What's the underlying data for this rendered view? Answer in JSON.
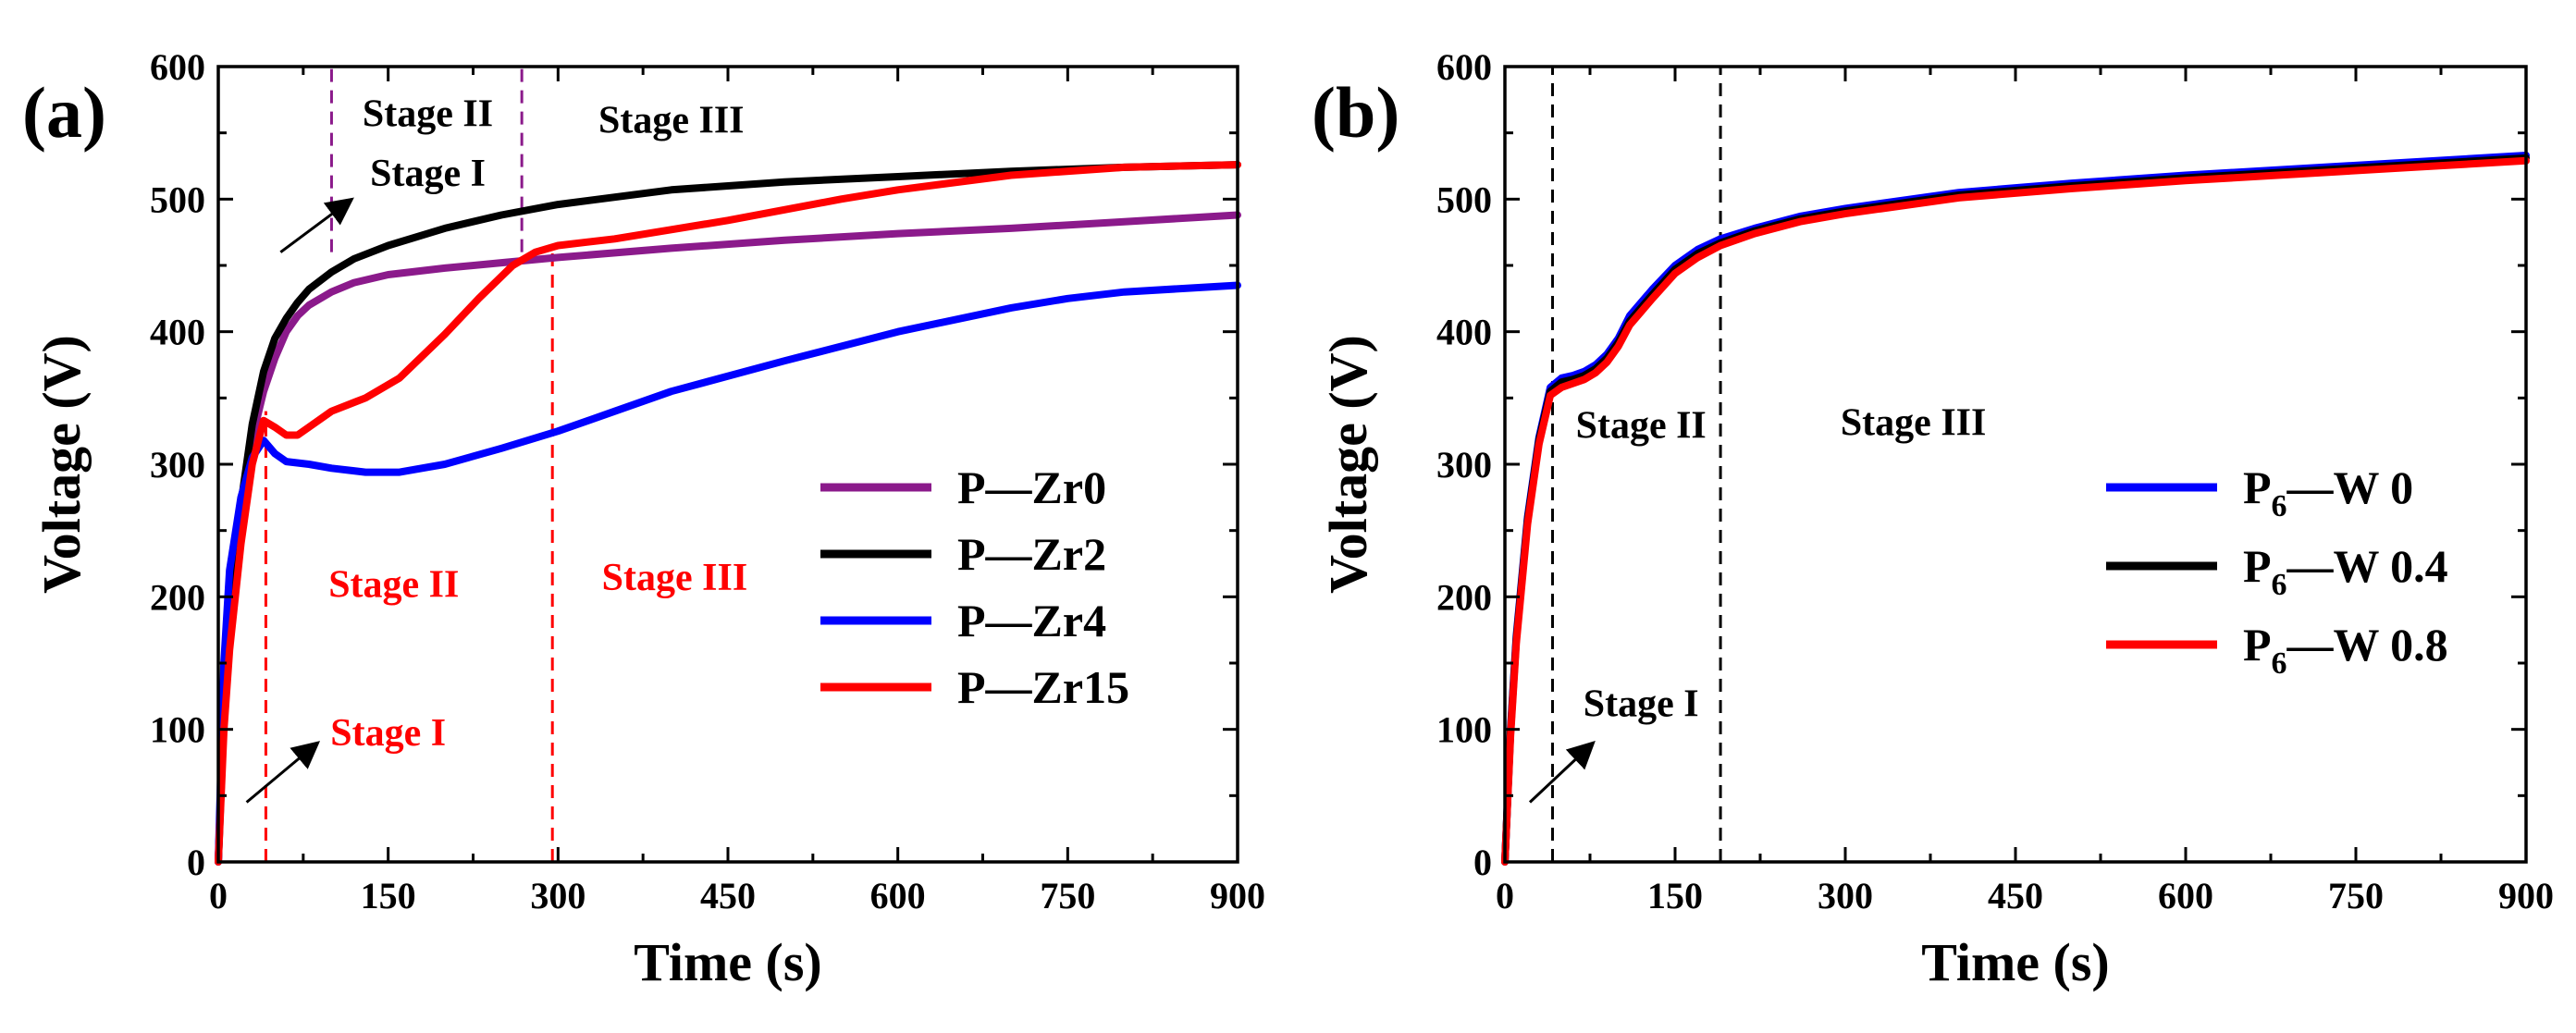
{
  "chart_data": [
    {
      "panel_label": "(a)",
      "type": "line",
      "xlabel": "Time (s)",
      "ylabel": "Voltage (V)",
      "xlim": [
        0,
        900
      ],
      "ylim": [
        0,
        600
      ],
      "xticks": [
        0,
        150,
        300,
        450,
        600,
        750,
        900
      ],
      "yticks": [
        0,
        100,
        200,
        300,
        400,
        500,
        600
      ],
      "vlines": [
        {
          "x": 42,
          "color": "#ff0000",
          "ymin": 0,
          "ymax": 340
        },
        {
          "x": 295,
          "color": "#ff0000",
          "ymin": 0,
          "ymax": 460
        },
        {
          "x": 100,
          "color": "#8b1a8b",
          "ymin": 460,
          "ymax": 600
        },
        {
          "x": 268,
          "color": "#8b1a8b",
          "ymin": 460,
          "ymax": 600
        }
      ],
      "annotations": [
        {
          "text": "Stage II",
          "x": 185,
          "y": 555,
          "color": "#000000"
        },
        {
          "text": "Stage III",
          "x": 400,
          "y": 550,
          "color": "#000000"
        },
        {
          "text": "Stage I",
          "x": 185,
          "y": 510,
          "color": "#000000"
        },
        {
          "text": "Stage II",
          "x": 155,
          "y": 200,
          "color": "#ff0000"
        },
        {
          "text": "Stage III",
          "x": 403,
          "y": 205,
          "color": "#ff0000"
        },
        {
          "text": "Stage I",
          "x": 150,
          "y": 88,
          "color": "#ff0000"
        }
      ],
      "arrows": [
        {
          "from": [
            55,
            460
          ],
          "to": [
            118,
            500
          ]
        },
        {
          "from": [
            25,
            45
          ],
          "to": [
            88,
            90
          ]
        }
      ],
      "legend": {
        "position": "center-right"
      },
      "series": [
        {
          "name": "P—Zr0",
          "color": "#8b1a8b",
          "x": [
            0,
            5,
            10,
            20,
            30,
            40,
            50,
            60,
            70,
            80,
            100,
            120,
            150,
            200,
            250,
            300,
            400,
            500,
            600,
            700,
            800,
            900
          ],
          "y": [
            0,
            120,
            190,
            270,
            320,
            355,
            380,
            400,
            412,
            420,
            430,
            437,
            443,
            448,
            452,
            456,
            463,
            469,
            474,
            478,
            483,
            488
          ]
        },
        {
          "name": "P—Zr2",
          "color": "#000000",
          "x": [
            0,
            5,
            10,
            20,
            30,
            40,
            50,
            60,
            70,
            80,
            100,
            120,
            150,
            200,
            250,
            300,
            400,
            500,
            600,
            700,
            800,
            900
          ],
          "y": [
            0,
            110,
            180,
            270,
            330,
            370,
            395,
            410,
            422,
            432,
            445,
            455,
            465,
            478,
            488,
            496,
            507,
            513,
            517,
            521,
            524,
            526
          ]
        },
        {
          "name": "P—Zr4",
          "color": "#0000ff",
          "x": [
            0,
            5,
            10,
            20,
            30,
            40,
            50,
            60,
            80,
            100,
            130,
            160,
            200,
            250,
            300,
            350,
            400,
            500,
            600,
            700,
            750,
            800,
            900
          ],
          "y": [
            0,
            150,
            220,
            275,
            305,
            318,
            308,
            302,
            300,
            297,
            294,
            294,
            300,
            312,
            325,
            340,
            355,
            378,
            400,
            418,
            425,
            430,
            435
          ]
        },
        {
          "name": "P—Zr15",
          "color": "#ff0000",
          "x": [
            0,
            5,
            10,
            20,
            30,
            40,
            50,
            60,
            70,
            80,
            100,
            130,
            160,
            200,
            230,
            260,
            280,
            300,
            350,
            400,
            450,
            500,
            550,
            600,
            700,
            800,
            900
          ],
          "y": [
            0,
            100,
            160,
            240,
            300,
            333,
            328,
            322,
            322,
            328,
            340,
            350,
            365,
            398,
            425,
            450,
            460,
            465,
            470,
            477,
            484,
            492,
            500,
            507,
            518,
            524,
            526
          ]
        }
      ]
    },
    {
      "panel_label": "(b)",
      "type": "line",
      "xlabel": "Time (s)",
      "ylabel": "Voltage (V)",
      "xlim": [
        0,
        900
      ],
      "ylim": [
        0,
        600
      ],
      "xticks": [
        0,
        150,
        300,
        450,
        600,
        750,
        900
      ],
      "yticks": [
        0,
        100,
        200,
        300,
        400,
        500,
        600
      ],
      "vlines": [
        {
          "x": 42,
          "color": "#000000",
          "ymin": 0,
          "ymax": 600
        },
        {
          "x": 190,
          "color": "#000000",
          "ymin": 0,
          "ymax": 600
        }
      ],
      "annotations": [
        {
          "text": "Stage II",
          "x": 120,
          "y": 320,
          "color": "#000000"
        },
        {
          "text": "Stage III",
          "x": 360,
          "y": 322,
          "color": "#000000"
        },
        {
          "text": "Stage I",
          "x": 120,
          "y": 110,
          "color": "#000000"
        }
      ],
      "arrows": [
        {
          "from": [
            22,
            45
          ],
          "to": [
            78,
            90
          ]
        }
      ],
      "legend": {
        "position": "center-right"
      },
      "series": [
        {
          "name": "P",
          "name_sub": "6",
          "name_rest": "—W 0",
          "color": "#0000ff",
          "x": [
            0,
            5,
            10,
            20,
            30,
            40,
            50,
            60,
            70,
            80,
            90,
            100,
            110,
            130,
            150,
            170,
            190,
            220,
            260,
            300,
            400,
            500,
            600,
            700,
            800,
            900
          ],
          "y": [
            0,
            100,
            170,
            260,
            320,
            358,
            365,
            367,
            370,
            375,
            383,
            395,
            412,
            432,
            450,
            462,
            470,
            478,
            487,
            493,
            505,
            512,
            518,
            523,
            528,
            533
          ]
        },
        {
          "name": "P",
          "name_sub": "6",
          "name_rest": "—W 0.4",
          "color": "#000000",
          "x": [
            0,
            5,
            10,
            20,
            30,
            40,
            50,
            60,
            70,
            80,
            90,
            100,
            110,
            130,
            150,
            170,
            190,
            220,
            260,
            300,
            400,
            500,
            600,
            700,
            800,
            900
          ],
          "y": [
            0,
            98,
            168,
            258,
            318,
            355,
            362,
            364,
            367,
            372,
            380,
            392,
            408,
            428,
            447,
            459,
            467,
            476,
            485,
            491,
            503,
            510,
            516,
            521,
            526,
            531
          ]
        },
        {
          "name": "P",
          "name_sub": "6",
          "name_rest": "—W 0.8",
          "color": "#ff0000",
          "x": [
            0,
            5,
            10,
            20,
            30,
            40,
            50,
            60,
            70,
            80,
            90,
            100,
            110,
            130,
            150,
            170,
            190,
            220,
            260,
            300,
            400,
            500,
            600,
            700,
            800,
            900
          ],
          "y": [
            0,
            95,
            165,
            255,
            315,
            352,
            358,
            361,
            364,
            369,
            377,
            389,
            405,
            425,
            444,
            456,
            465,
            474,
            483,
            489,
            501,
            508,
            514,
            519,
            524,
            529
          ]
        }
      ]
    }
  ]
}
